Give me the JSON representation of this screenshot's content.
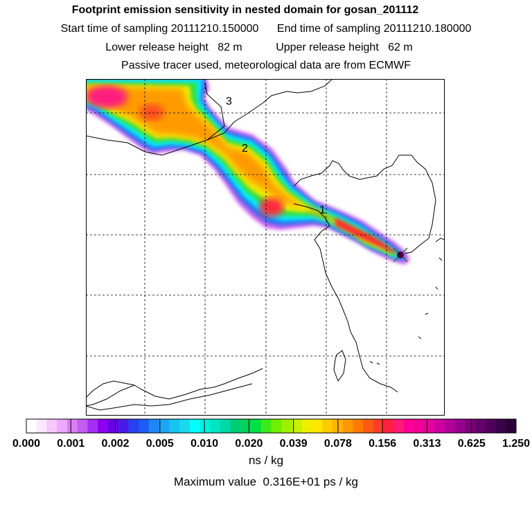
{
  "header": {
    "title": "Footprint emission sensitivity in nested domain for gosan_201112",
    "start_label": "Start time of sampling",
    "start_value": "20111210.150000",
    "end_label": "End time of sampling",
    "end_value": "20111210.180000",
    "lower_label": "Lower release height",
    "lower_value": "82 m",
    "upper_label": "Upper release height",
    "upper_value": "62 m",
    "note": "Passive tracer used, meteorological data are from ECMWF"
  },
  "map": {
    "labels": [
      "1",
      "2",
      "3"
    ],
    "release_site_icon": "release-site-marker"
  },
  "colorbar": {
    "ticks": [
      "0.000",
      "0.001",
      "0.002",
      "0.005",
      "0.010",
      "0.020",
      "0.039",
      "0.078",
      "0.156",
      "0.313",
      "0.625",
      "1.250"
    ],
    "colors": [
      "#ffffff",
      "#fbe8ff",
      "#f5c8ff",
      "#eea8ff",
      "#d87ff5",
      "#c25cf2",
      "#a52ff0",
      "#8c00f0",
      "#6a00e6",
      "#4a1ae8",
      "#2840f0",
      "#1d5df5",
      "#1f86f5",
      "#1ea6f5",
      "#18c4f0",
      "#1ad8ee",
      "#00ffff",
      "#00f0e0",
      "#00e6c4",
      "#00d8a8",
      "#00cc73",
      "#00d55a",
      "#00e040",
      "#3cea1a",
      "#6ef000",
      "#9ef000",
      "#c8f000",
      "#eef000",
      "#ffe800",
      "#ffcc00",
      "#ffb400",
      "#ff9800",
      "#ff7a00",
      "#ff5a14",
      "#ff3c28",
      "#ff2040",
      "#ff1a78",
      "#ff0096",
      "#f00096",
      "#e6009b",
      "#cc00a0",
      "#b4009b",
      "#96008c",
      "#7a0078",
      "#640069",
      "#50005a",
      "#3c004b",
      "#2a0037"
    ],
    "unit": "ns / kg"
  },
  "footer": {
    "max_label": "Maximum value",
    "max_value": "0.316E+01 ps / kg"
  }
}
